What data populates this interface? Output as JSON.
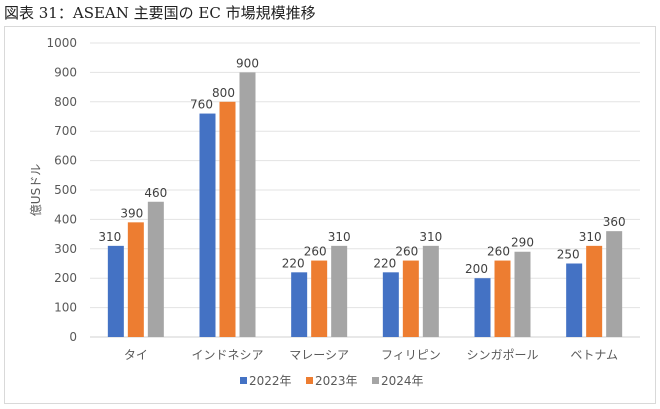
{
  "title": "図表 31：ASEAN 主要国の EC 市場規模推移",
  "chart_data": {
    "type": "bar",
    "title": "",
    "xlabel": "",
    "ylabel": "億USドル",
    "ylim": [
      0,
      1000
    ],
    "yticks": [
      0,
      100,
      200,
      300,
      400,
      500,
      600,
      700,
      800,
      900,
      1000
    ],
    "grid": true,
    "legend_position": "bottom",
    "categories": [
      "タイ",
      "インドネシア",
      "マレーシア",
      "フィリピン",
      "シンガポール",
      "ベトナム"
    ],
    "series": [
      {
        "name": "2022年",
        "color": "#4472c4",
        "values": [
          310,
          760,
          220,
          220,
          200,
          250
        ]
      },
      {
        "name": "2023年",
        "color": "#ed7d31",
        "values": [
          390,
          800,
          260,
          260,
          260,
          310
        ]
      },
      {
        "name": "2024年",
        "color": "#a5a5a5",
        "values": [
          460,
          900,
          310,
          310,
          290,
          360
        ]
      }
    ]
  }
}
